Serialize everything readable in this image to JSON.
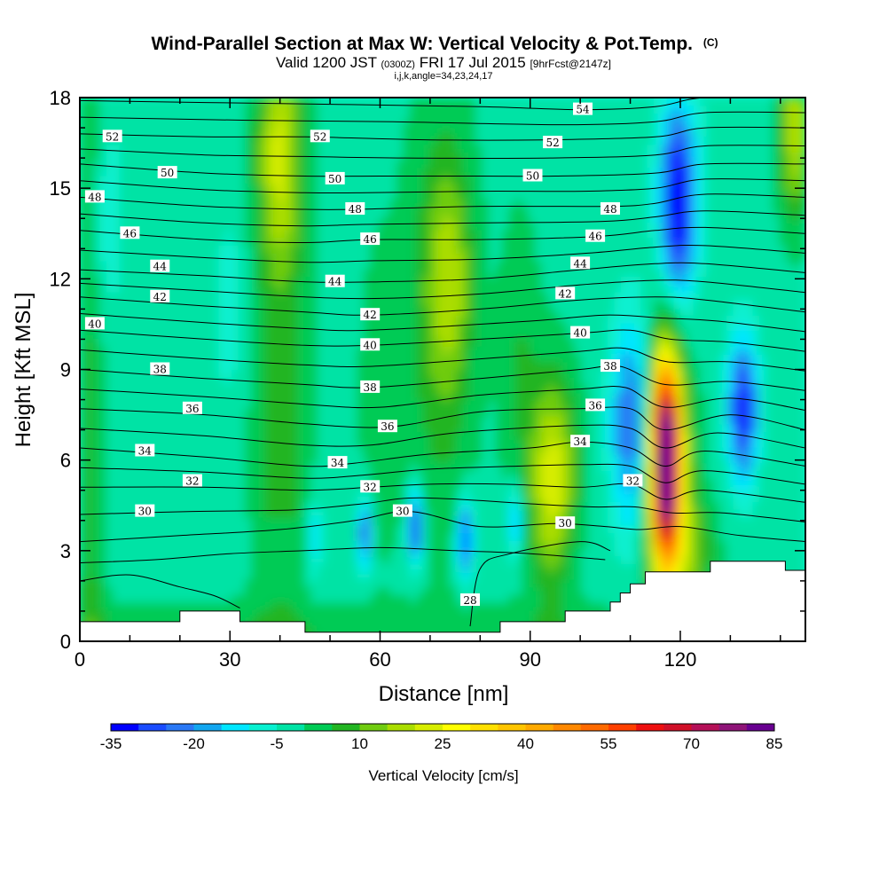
{
  "title": {
    "main": "Wind-Parallel Section at Max W: Vertical Velocity & Pot.Temp.",
    "main_suffix": "(C)",
    "valid_prefix": "Valid 1200 JST",
    "valid_utc": "(0300Z)",
    "valid_date": "FRI 17 Jul 2015",
    "forecast": "[9hrFcst@2147z]",
    "params": "i,j,k,angle=34,23,24,17"
  },
  "chart_data": {
    "type": "heatmap",
    "xlabel": "Distance [nm]",
    "ylabel": "Height [Kft MSL]",
    "xlim": [
      0,
      145
    ],
    "ylim": [
      0,
      18
    ],
    "xticks": [
      0,
      30,
      60,
      90,
      120
    ],
    "yticks": [
      0,
      3,
      6,
      9,
      12,
      15,
      18
    ],
    "colorbar": {
      "label": "Vertical Velocity [cm/s]",
      "tick_labels": [
        "-35",
        "-20",
        "-5",
        "10",
        "25",
        "40",
        "55",
        "70",
        "85"
      ],
      "levels_min": -35,
      "levels_step": 5,
      "colors": [
        "#0000ff",
        "#1a4cff",
        "#2a78f5",
        "#12a6ef",
        "#00e6ff",
        "#08f0d0",
        "#00e3a5",
        "#00cb55",
        "#22b522",
        "#70cc10",
        "#aadd00",
        "#d7ed00",
        "#ffff00",
        "#ffe000",
        "#ffc500",
        "#ffaa00",
        "#ff8800",
        "#ff6a00",
        "#ff4000",
        "#ee1010",
        "#d01028",
        "#b51058",
        "#8f1478",
        "#680090"
      ]
    },
    "vertical_velocity_features": [
      {
        "x": 5,
        "y": 14,
        "w": -8
      },
      {
        "x": 30,
        "y": 11,
        "w": -6
      },
      {
        "x": 47,
        "y": 3.5,
        "w": -14
      },
      {
        "x": 57,
        "y": 3.6,
        "w": -24
      },
      {
        "x": 67,
        "y": 3.8,
        "w": -30
      },
      {
        "x": 77,
        "y": 3.4,
        "w": -32
      },
      {
        "x": 87,
        "y": 4,
        "w": -18
      },
      {
        "x": 110,
        "y": 7.2,
        "w": -22
      },
      {
        "x": 119.5,
        "y": 14.5,
        "w": -30
      },
      {
        "x": 132.5,
        "y": 7.7,
        "w": -30
      },
      {
        "x": 117,
        "y": 6,
        "w": 88
      },
      {
        "x": 94,
        "y": 5,
        "w": 18
      },
      {
        "x": 74,
        "y": 12,
        "w": 12
      },
      {
        "x": 40,
        "y": 16,
        "w": 15
      },
      {
        "x": 143,
        "y": 17,
        "w": 22
      }
    ],
    "theta_contours": [
      {
        "label": "28",
        "label_at": [
          78,
          1.35
        ],
        "points": [
          [
            78,
            0.5
          ],
          [
            80,
            2.4
          ],
          [
            86,
            2.9
          ],
          [
            100,
            3.3
          ],
          [
            106,
            3.0
          ]
        ]
      },
      {
        "label": "30",
        "label_at": [
          66,
          4.3
        ],
        "points": [
          [
            0,
            3.3
          ],
          [
            20,
            3.5
          ],
          [
            40,
            3.7
          ],
          [
            55,
            4.0
          ],
          [
            66,
            4.3
          ],
          [
            80,
            3.8
          ],
          [
            95,
            3.9
          ],
          [
            105,
            3.8
          ],
          [
            112,
            3.7
          ],
          [
            120,
            3.8
          ],
          [
            132,
            3.5
          ],
          [
            145,
            3.3
          ]
        ]
      },
      {
        "label": "32",
        "label_at": [
          58,
          5.1
        ],
        "points": [
          [
            0,
            5.1
          ],
          [
            25,
            5.1
          ],
          [
            45,
            5.0
          ],
          [
            58,
            5.1
          ],
          [
            70,
            5.2
          ],
          [
            85,
            5.2
          ],
          [
            100,
            5.1
          ],
          [
            110,
            5.2
          ],
          [
            117,
            4.7
          ],
          [
            125,
            5.0
          ],
          [
            145,
            4.6
          ]
        ]
      },
      {
        "label": "34",
        "label_at": [
          52,
          5.9
        ],
        "points": [
          [
            0,
            6.4
          ],
          [
            25,
            6.1
          ],
          [
            45,
            5.8
          ],
          [
            55,
            5.9
          ],
          [
            70,
            6.2
          ],
          [
            90,
            6.4
          ],
          [
            100,
            6.6
          ],
          [
            110,
            6.4
          ],
          [
            117,
            5.8
          ],
          [
            125,
            6.3
          ],
          [
            145,
            5.8
          ]
        ]
      },
      {
        "label": "36",
        "label_at": [
          62,
          7.1
        ],
        "points": [
          [
            0,
            7.7
          ],
          [
            25,
            7.5
          ],
          [
            45,
            7.2
          ],
          [
            62,
            7.1
          ],
          [
            80,
            7.6
          ],
          [
            100,
            7.7
          ],
          [
            110,
            7.7
          ],
          [
            117,
            7.0
          ],
          [
            130,
            7.5
          ],
          [
            145,
            7.0
          ]
        ]
      },
      {
        "label": "38",
        "label_at": [
          58,
          8.4
        ],
        "points": [
          [
            0,
            9.0
          ],
          [
            25,
            8.7
          ],
          [
            45,
            8.5
          ],
          [
            58,
            8.4
          ],
          [
            80,
            8.7
          ],
          [
            100,
            9.0
          ],
          [
            108,
            9.1
          ],
          [
            117,
            8.5
          ],
          [
            130,
            8.6
          ],
          [
            145,
            8.3
          ]
        ]
      },
      {
        "label": "40",
        "label_at": [
          58,
          9.8
        ],
        "points": [
          [
            0,
            10.3
          ],
          [
            25,
            10.0
          ],
          [
            45,
            9.8
          ],
          [
            58,
            9.8
          ],
          [
            80,
            10.0
          ],
          [
            100,
            10.2
          ],
          [
            110,
            10.3
          ],
          [
            118,
            10.0
          ],
          [
            130,
            9.9
          ],
          [
            145,
            9.6
          ]
        ]
      },
      {
        "label": "42",
        "label_at": [
          58,
          10.8
        ],
        "points": [
          [
            0,
            11.4
          ],
          [
            25,
            11.1
          ],
          [
            45,
            10.9
          ],
          [
            58,
            10.8
          ],
          [
            80,
            11.0
          ],
          [
            100,
            11.3
          ],
          [
            115,
            11.4
          ],
          [
            125,
            11.3
          ],
          [
            145,
            10.9
          ]
        ]
      },
      {
        "label": "44",
        "label_at": [
          51,
          11.9
        ],
        "points": [
          [
            0,
            12.3
          ],
          [
            25,
            12.1
          ],
          [
            45,
            11.9
          ],
          [
            60,
            11.9
          ],
          [
            80,
            12.0
          ],
          [
            100,
            12.3
          ],
          [
            115,
            12.5
          ],
          [
            125,
            12.5
          ],
          [
            145,
            12.2
          ]
        ]
      },
      {
        "label": "46",
        "label_at": [
          58,
          13.3
        ],
        "points": [
          [
            0,
            13.6
          ],
          [
            25,
            13.3
          ],
          [
            45,
            13.2
          ],
          [
            58,
            13.3
          ],
          [
            80,
            13.3
          ],
          [
            103,
            13.4
          ],
          [
            115,
            13.6
          ],
          [
            125,
            13.7
          ],
          [
            145,
            13.5
          ]
        ]
      },
      {
        "label": "48",
        "label_at": [
          55,
          14.3
        ],
        "points": [
          [
            0,
            14.7
          ],
          [
            25,
            14.4
          ],
          [
            45,
            14.3
          ],
          [
            55,
            14.3
          ],
          [
            80,
            14.4
          ],
          [
            106,
            14.4
          ],
          [
            115,
            14.5
          ],
          [
            125,
            14.8
          ],
          [
            145,
            14.7
          ]
        ]
      },
      {
        "label": "50",
        "label_at": [
          51,
          15.3
        ],
        "points": [
          [
            0,
            15.8
          ],
          [
            25,
            15.5
          ],
          [
            45,
            15.4
          ],
          [
            60,
            15.4
          ],
          [
            80,
            15.4
          ],
          [
            95,
            15.4
          ],
          [
            115,
            15.5
          ],
          [
            125,
            15.8
          ],
          [
            145,
            15.8
          ]
        ]
      },
      {
        "label": "52",
        "label_at": [
          48,
          16.7
        ],
        "points": [
          [
            0,
            16.8
          ],
          [
            25,
            16.7
          ],
          [
            45,
            16.7
          ],
          [
            70,
            16.6
          ],
          [
            93,
            16.6
          ],
          [
            115,
            16.7
          ],
          [
            125,
            17.0
          ],
          [
            145,
            17.0
          ]
        ]
      },
      {
        "label": "54",
        "label_at": [
          100,
          17.6
        ],
        "points": [
          [
            0,
            17.9
          ],
          [
            40,
            17.8
          ],
          [
            80,
            17.7
          ],
          [
            100,
            17.6
          ],
          [
            115,
            17.7
          ],
          [
            125,
            18.0
          ],
          [
            145,
            18.0
          ]
        ]
      }
    ],
    "theta_label_positions": [
      [
        6.5,
        16.7
      ],
      [
        17.5,
        15.5
      ],
      [
        3,
        14.7
      ],
      [
        10,
        13.5
      ],
      [
        16,
        12.4
      ],
      [
        16,
        11.4
      ],
      [
        3,
        10.5
      ],
      [
        16,
        9.0
      ],
      [
        22.5,
        7.7
      ],
      [
        13,
        6.3
      ],
      [
        22.5,
        5.3
      ],
      [
        13,
        4.3
      ],
      [
        48,
        16.7
      ],
      [
        51,
        15.3
      ],
      [
        55,
        14.3
      ],
      [
        58,
        13.3
      ],
      [
        51,
        11.9
      ],
      [
        58,
        10.8
      ],
      [
        58,
        9.8
      ],
      [
        58,
        8.4
      ],
      [
        61.5,
        7.1
      ],
      [
        51.5,
        5.9
      ],
      [
        58,
        5.1
      ],
      [
        64.5,
        4.3
      ],
      [
        78,
        1.35
      ],
      [
        100.5,
        17.6
      ],
      [
        94.5,
        16.5
      ],
      [
        90.5,
        15.4
      ],
      [
        106,
        14.3
      ],
      [
        103,
        13.4
      ],
      [
        100,
        12.5
      ],
      [
        97,
        11.5
      ],
      [
        100,
        10.2
      ],
      [
        106,
        9.1
      ],
      [
        103,
        7.8
      ],
      [
        100,
        6.6
      ],
      [
        110.5,
        5.3
      ],
      [
        97,
        3.9
      ]
    ],
    "terrain": [
      [
        0,
        0.65
      ],
      [
        20,
        0.65
      ],
      [
        20,
        1.0
      ],
      [
        32,
        1.0
      ],
      [
        32,
        0.65
      ],
      [
        45,
        0.65
      ],
      [
        45,
        0.3
      ],
      [
        84,
        0.3
      ],
      [
        84,
        0.65
      ],
      [
        97,
        0.65
      ],
      [
        97,
        1.0
      ],
      [
        106,
        1.0
      ],
      [
        106,
        1.3
      ],
      [
        108,
        1.3
      ],
      [
        108,
        1.6
      ],
      [
        110,
        1.6
      ],
      [
        110,
        1.9
      ],
      [
        113,
        1.9
      ],
      [
        113,
        2.3
      ],
      [
        126,
        2.3
      ],
      [
        126,
        2.65
      ],
      [
        141,
        2.65
      ],
      [
        141,
        2.35
      ],
      [
        145,
        2.35
      ]
    ]
  }
}
